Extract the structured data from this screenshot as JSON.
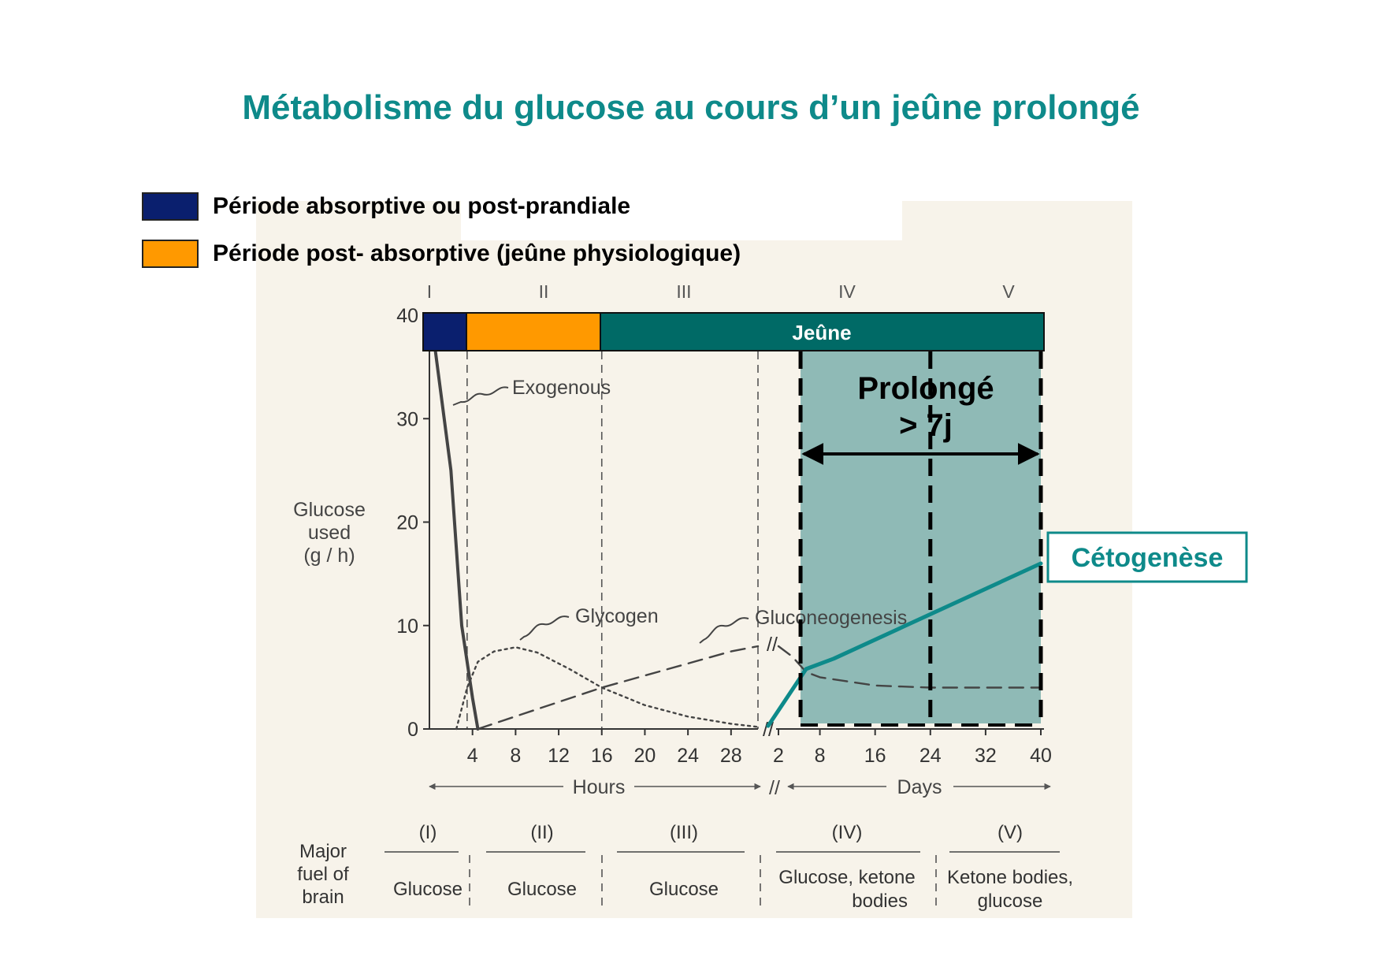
{
  "title": "Métabolisme du glucose au cours d’un jeûne prolongé",
  "legend": [
    {
      "label": "Période absorptive ou post-prandiale",
      "color": "#0a1f6e"
    },
    {
      "label": "Période post- absorptive (jeûne physiologique)",
      "color": "#ff9900"
    }
  ],
  "colors": {
    "paper": "#f7f3ea",
    "teal": "#0e8a8a",
    "dark_teal": "#006a66",
    "shade": "#8fbab6",
    "navy": "#0a1f6e",
    "orange": "#ff9900",
    "curve": "#444444"
  },
  "chart_data": {
    "type": "line",
    "ylabel": [
      "Glucose",
      "used",
      "(g / h)"
    ],
    "ylim": [
      0,
      40
    ],
    "y_ticks": [
      "0",
      "10",
      "20",
      "30",
      "40"
    ],
    "x_hours_ticks": [
      "4",
      "8",
      "12",
      "16",
      "20",
      "24",
      "28"
    ],
    "x_days_ticks": [
      "2",
      "8",
      "16",
      "24",
      "32",
      "40"
    ],
    "x_hours_label": "Hours",
    "x_days_label": "Days",
    "axis_break": "//",
    "phases": [
      "I",
      "II",
      "III",
      "IV",
      "V"
    ],
    "fasting_strip": "Jeûne",
    "prolonged": {
      "line1": "Prolongé",
      "line2": "> 7j"
    },
    "series": [
      {
        "name": "Exogenous",
        "style": "solid",
        "unit": "hours",
        "points": [
          [
            0,
            40
          ],
          [
            0.5,
            37
          ],
          [
            2,
            25
          ],
          [
            3,
            10
          ],
          [
            4,
            3
          ],
          [
            4.5,
            0
          ]
        ]
      },
      {
        "name": "Glycogen",
        "style": "dotted",
        "unit": "hours",
        "points": [
          [
            2.5,
            0
          ],
          [
            3.5,
            4
          ],
          [
            4.5,
            6.5
          ],
          [
            6,
            7.5
          ],
          [
            8,
            7.9
          ],
          [
            10,
            7.4
          ],
          [
            13,
            5.8
          ],
          [
            16,
            4
          ],
          [
            20,
            2.3
          ],
          [
            24,
            1.2
          ],
          [
            28,
            0.5
          ],
          [
            30.5,
            0.2
          ]
        ]
      },
      {
        "name": "Gluconeogenesis",
        "style": "dashed",
        "unit": "hours",
        "points": [
          [
            4.5,
            0
          ],
          [
            16,
            4
          ],
          [
            28,
            7.5
          ],
          [
            30.5,
            8
          ]
        ]
      },
      {
        "name": "Gluconeogenesis",
        "style": "dashed",
        "unit": "days",
        "points": [
          [
            2,
            8
          ],
          [
            4,
            7
          ],
          [
            6,
            5.5
          ],
          [
            8,
            5
          ],
          [
            16,
            4.2
          ],
          [
            24,
            4
          ],
          [
            32,
            4
          ],
          [
            40,
            4
          ]
        ]
      },
      {
        "name": "Cétogenèse",
        "style": "teal",
        "unit": "days",
        "points": [
          [
            0.5,
            0.3
          ],
          [
            6,
            5.8
          ],
          [
            10,
            6.8
          ],
          [
            40,
            16
          ]
        ]
      }
    ],
    "fuel_header": [
      "Major",
      "fuel of",
      "brain"
    ],
    "fuel": [
      {
        "phase": "(I)",
        "lines": [
          "Glucose"
        ]
      },
      {
        "phase": "(II)",
        "lines": [
          "Glucose"
        ]
      },
      {
        "phase": "(III)",
        "lines": [
          "Glucose"
        ]
      },
      {
        "phase": "(IV)",
        "lines": [
          "Glucose, ketone",
          "bodies"
        ]
      },
      {
        "phase": "(V)",
        "lines": [
          "Ketone bodies,",
          "glucose"
        ]
      }
    ]
  }
}
